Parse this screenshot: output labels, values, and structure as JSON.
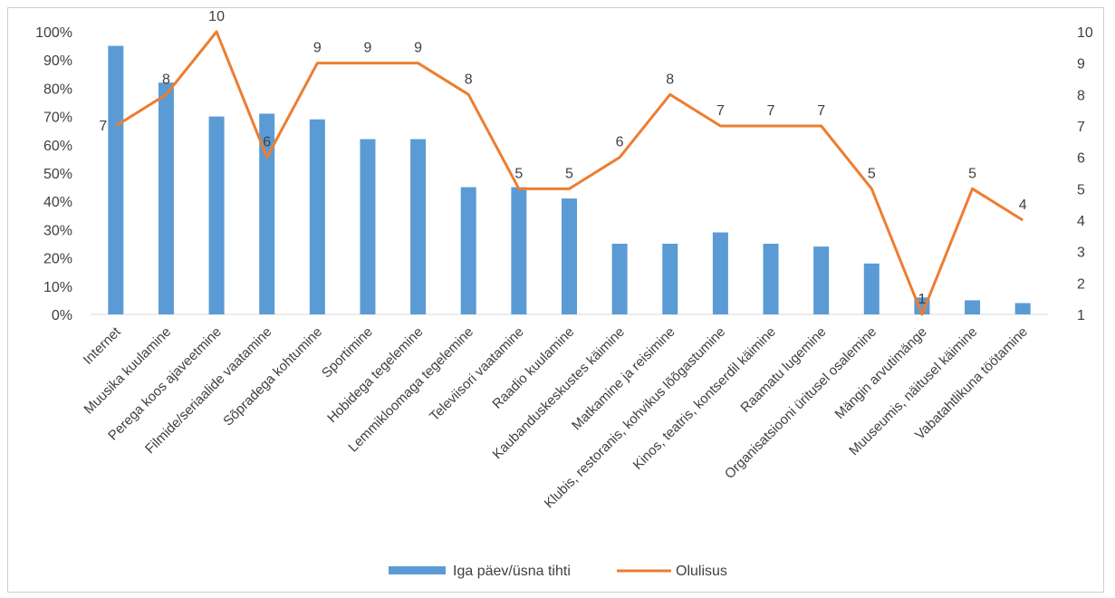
{
  "chart_data": {
    "type": "bar+line",
    "categories": [
      "Internet",
      "Muusika kuulamine",
      "Perega koos ajaveetmine",
      "Filmide/seriaalide vaatamine",
      "Sõpradega kohtumine",
      "Sportimine",
      "Hobidega tegelemine",
      "Lemmikloomaga tegelemine",
      "Televiisori vaatamine",
      "Raadio kuulamine",
      "Kaubanduskeskustes käimine",
      "Matkamine ja reisimine",
      "Klubis, restoranis, kohvikus lõõgastumine",
      "Kinos, teatris, kontserdil käimine",
      "Raamatu lugemine",
      "Organisatsiooni üritusel osalemine",
      "Mängin arvutimänge",
      "Muuseumis, näitusel käimine",
      "Vabatahtlikuna töötamine"
    ],
    "series": [
      {
        "name": "Iga päev/üsna tihti",
        "type": "bar",
        "axis": "left",
        "color": "#5B9BD5",
        "values": [
          95,
          82,
          70,
          71,
          69,
          62,
          62,
          45,
          45,
          41,
          25,
          25,
          29,
          25,
          24,
          18,
          6,
          5,
          4
        ]
      },
      {
        "name": "Olulisus",
        "type": "line",
        "axis": "right",
        "color": "#ED7D31",
        "values": [
          7,
          8,
          10,
          6,
          9,
          9,
          9,
          8,
          5,
          5,
          6,
          8,
          7,
          7,
          7,
          5,
          1,
          5,
          4
        ],
        "data_labels": [
          "7",
          "8",
          "10",
          "6",
          "9",
          "9",
          "9",
          "8",
          "5",
          "5",
          "6",
          "8",
          "7",
          "7",
          "7",
          "5",
          "1",
          "5",
          "4"
        ]
      }
    ],
    "left_axis": {
      "ylim": [
        0,
        100
      ],
      "ticks": [
        0,
        10,
        20,
        30,
        40,
        50,
        60,
        70,
        80,
        90,
        100
      ],
      "tick_labels": [
        "0%",
        "10%",
        "20%",
        "30%",
        "40%",
        "50%",
        "60%",
        "70%",
        "80%",
        "90%",
        "100%"
      ]
    },
    "right_axis": {
      "ylim": [
        1,
        10
      ],
      "ticks": [
        1,
        2,
        3,
        4,
        5,
        6,
        7,
        8,
        9,
        10
      ],
      "tick_labels": [
        "1",
        "2",
        "3",
        "4",
        "5",
        "6",
        "7",
        "8",
        "9",
        "10"
      ]
    },
    "grid": false,
    "legend": {
      "position": "bottom",
      "entries": [
        "Iga päev/üsna tihti",
        "Olulisus"
      ]
    }
  }
}
